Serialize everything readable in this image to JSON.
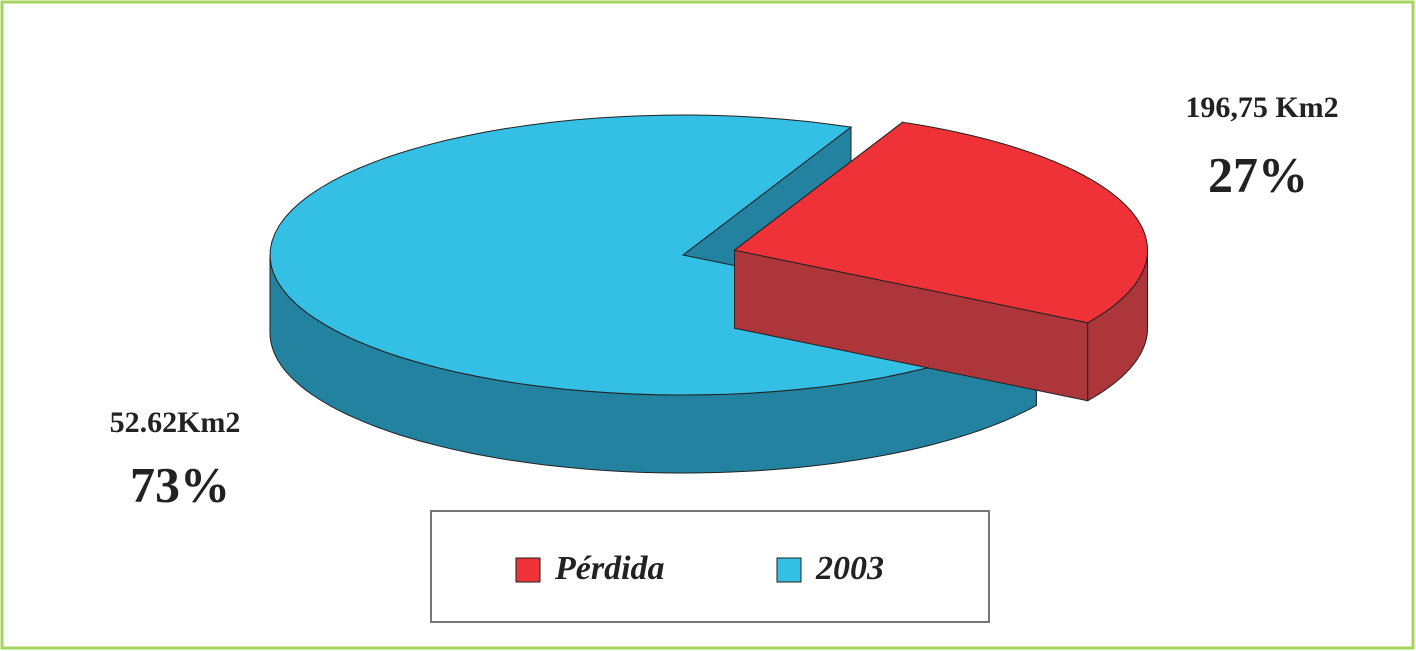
{
  "chart_data": {
    "type": "pie3d",
    "categories": [
      "Pérdida",
      "2003"
    ],
    "values": [
      27,
      73
    ],
    "value_labels": [
      "27%",
      "73%"
    ],
    "area_labels": [
      "196,75 Km2",
      "52.62Km2"
    ],
    "colors": [
      "#ee3237",
      "#34c0e5"
    ],
    "side_colors": [
      "#ac363a",
      "#22829f"
    ],
    "exploded": [
      true,
      false
    ],
    "legend": "bottom"
  }
}
